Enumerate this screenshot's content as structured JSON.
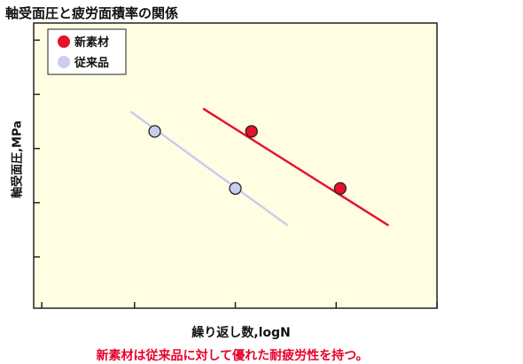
{
  "chart_data": {
    "type": "scatter",
    "title": "軸受面圧と疲労面積率の関係",
    "xlabel": "繰り返し数,logN",
    "ylabel": "軸受面圧,MPa",
    "caption": "新素材は従来品に対して優れた耐疲労性を持つ。",
    "xlim": [
      0,
      10
    ],
    "ylim": [
      0,
      10
    ],
    "grid": false,
    "legend_position": "top-left",
    "series": [
      {
        "name": "新素材",
        "color": "#e8112d",
        "points": [
          [
            5.4,
            6.2
          ],
          [
            7.6,
            4.2
          ]
        ],
        "fit": [
          [
            4.2,
            7.0
          ],
          [
            8.8,
            2.9
          ]
        ]
      },
      {
        "name": "従来品",
        "color": "#c9cdf0",
        "points": [
          [
            3.0,
            6.2
          ],
          [
            5.0,
            4.2
          ]
        ],
        "fit": [
          [
            2.4,
            6.9
          ],
          [
            6.3,
            2.9
          ]
        ]
      }
    ]
  }
}
